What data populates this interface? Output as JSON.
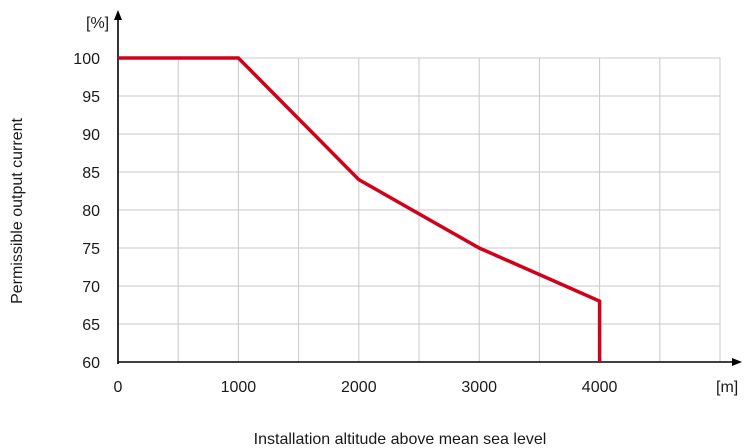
{
  "chart_data": {
    "type": "line",
    "xlabel": "Installation altitude above mean sea level",
    "ylabel": "Permissible output current",
    "x_unit": "[m]",
    "y_unit": "[%]",
    "xlim": [
      0,
      5000
    ],
    "ylim": [
      60,
      100
    ],
    "x_ticks": [
      0,
      1000,
      2000,
      3000,
      4000
    ],
    "y_ticks": [
      60,
      65,
      70,
      75,
      80,
      85,
      90,
      95,
      100
    ],
    "grid": true,
    "series": [
      {
        "color": "#d0021b",
        "points": [
          {
            "x": 0,
            "y": 100
          },
          {
            "x": 1000,
            "y": 100
          },
          {
            "x": 2000,
            "y": 84
          },
          {
            "x": 3000,
            "y": 75
          },
          {
            "x": 4000,
            "y": 68
          },
          {
            "x": 4000,
            "y": 60
          }
        ]
      }
    ]
  },
  "colors": {
    "grid": "#c8c8c8",
    "axis": "#000000",
    "line": "#d0021b"
  }
}
